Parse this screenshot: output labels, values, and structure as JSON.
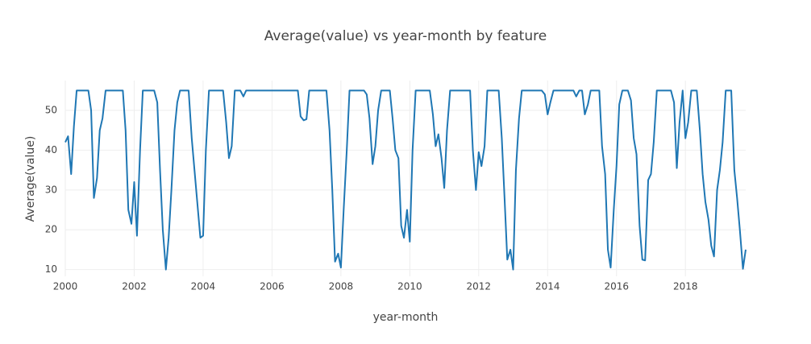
{
  "chart_data": {
    "type": "line",
    "title": "Average(value) vs year-month by feature",
    "x_label": "year-month",
    "y_label": "Average(value)",
    "color": "#1f77b4",
    "grid": true,
    "xlim": [
      2000,
      2019.75
    ],
    "ylim": [
      8.3,
      57.5
    ],
    "xticks": [
      2000,
      2002,
      2004,
      2006,
      2008,
      2010,
      2012,
      2014,
      2016,
      2018
    ],
    "yticks": [
      10,
      20,
      30,
      40,
      50
    ],
    "x": [
      2000,
      2000.08,
      2000.17,
      2000.25,
      2000.33,
      2000.42,
      2000.5,
      2000.58,
      2000.67,
      2000.75,
      2000.83,
      2000.92,
      2001,
      2001.08,
      2001.17,
      2001.25,
      2001.33,
      2001.42,
      2001.5,
      2001.58,
      2001.67,
      2001.75,
      2001.83,
      2001.92,
      2002,
      2002.08,
      2002.17,
      2002.25,
      2002.33,
      2002.42,
      2002.5,
      2002.58,
      2002.67,
      2002.75,
      2002.83,
      2002.92,
      2003,
      2003.08,
      2003.17,
      2003.25,
      2003.33,
      2003.42,
      2003.5,
      2003.58,
      2003.67,
      2003.75,
      2003.83,
      2003.92,
      2004,
      2004.08,
      2004.17,
      2004.25,
      2004.33,
      2004.42,
      2004.5,
      2004.58,
      2004.67,
      2004.75,
      2004.83,
      2004.92,
      2005,
      2005.08,
      2005.17,
      2005.25,
      2005.33,
      2005.42,
      2005.5,
      2005.58,
      2005.67,
      2005.75,
      2005.83,
      2005.92,
      2006,
      2006.08,
      2006.17,
      2006.25,
      2006.33,
      2006.42,
      2006.5,
      2006.58,
      2006.67,
      2006.75,
      2006.83,
      2006.92,
      2007,
      2007.08,
      2007.17,
      2007.25,
      2007.33,
      2007.42,
      2007.5,
      2007.58,
      2007.67,
      2007.75,
      2007.83,
      2007.92,
      2008,
      2008.08,
      2008.17,
      2008.25,
      2008.33,
      2008.42,
      2008.5,
      2008.58,
      2008.67,
      2008.75,
      2008.83,
      2008.92,
      2009,
      2009.08,
      2009.17,
      2009.25,
      2009.33,
      2009.42,
      2009.5,
      2009.58,
      2009.67,
      2009.75,
      2009.83,
      2009.92,
      2010,
      2010.08,
      2010.17,
      2010.25,
      2010.33,
      2010.42,
      2010.5,
      2010.58,
      2010.67,
      2010.75,
      2010.83,
      2010.92,
      2011,
      2011.08,
      2011.17,
      2011.25,
      2011.33,
      2011.42,
      2011.5,
      2011.58,
      2011.67,
      2011.75,
      2011.83,
      2011.92,
      2012,
      2012.08,
      2012.17,
      2012.25,
      2012.33,
      2012.42,
      2012.5,
      2012.58,
      2012.67,
      2012.75,
      2012.83,
      2012.92,
      2013,
      2013.08,
      2013.17,
      2013.25,
      2013.33,
      2013.42,
      2013.5,
      2013.58,
      2013.67,
      2013.75,
      2013.83,
      2013.92,
      2014,
      2014.08,
      2014.17,
      2014.25,
      2014.33,
      2014.42,
      2014.5,
      2014.58,
      2014.67,
      2014.75,
      2014.83,
      2014.92,
      2015,
      2015.08,
      2015.17,
      2015.25,
      2015.33,
      2015.42,
      2015.5,
      2015.58,
      2015.67,
      2015.75,
      2015.83,
      2015.92,
      2016,
      2016.08,
      2016.17,
      2016.25,
      2016.33,
      2016.42,
      2016.5,
      2016.58,
      2016.67,
      2016.75,
      2016.83,
      2016.92,
      2017,
      2017.08,
      2017.17,
      2017.25,
      2017.33,
      2017.42,
      2017.5,
      2017.58,
      2017.67,
      2017.75,
      2017.83,
      2017.92,
      2018,
      2018.08,
      2018.17,
      2018.25,
      2018.33,
      2018.42,
      2018.5,
      2018.58,
      2018.67,
      2018.75,
      2018.83,
      2018.92,
      2019,
      2019.08,
      2019.17,
      2019.25,
      2019.33,
      2019.42,
      2019.5,
      2019.58,
      2019.67,
      2019.75
    ],
    "values": [
      42,
      43.5,
      34,
      46,
      55,
      55,
      55,
      55,
      55,
      50,
      28,
      33,
      45,
      48,
      55,
      55,
      55,
      55,
      55,
      55,
      55,
      45,
      25,
      21.5,
      32,
      18.5,
      40,
      55,
      55,
      55,
      55,
      55,
      52,
      35,
      20,
      10,
      18,
      30,
      45,
      52,
      55,
      55,
      55,
      55,
      43,
      35,
      27,
      18,
      18.5,
      40,
      55,
      55,
      55,
      55,
      55,
      55,
      47,
      38,
      41,
      55,
      55,
      55,
      53.5,
      55,
      55,
      55,
      55,
      55,
      55,
      55,
      55,
      55,
      55,
      55,
      55,
      55,
      55,
      55,
      55,
      55,
      55,
      55,
      48.5,
      47.5,
      47.8,
      55,
      55,
      55,
      55,
      55,
      55,
      55,
      45,
      30,
      12,
      14,
      10.5,
      25,
      40,
      55,
      55,
      55,
      55,
      55,
      55,
      54,
      48,
      36.5,
      41,
      50,
      55,
      55,
      55,
      55,
      48,
      40,
      38,
      21,
      18,
      25,
      17,
      40,
      55,
      55,
      55,
      55,
      55,
      55,
      49,
      41,
      44,
      38,
      30.5,
      45,
      55,
      55,
      55,
      55,
      55,
      55,
      55,
      55,
      40,
      30,
      39.5,
      36,
      41,
      55,
      55,
      55,
      55,
      55,
      43,
      28,
      12.5,
      15,
      10,
      35,
      48,
      55,
      55,
      55,
      55,
      55,
      55,
      55,
      55,
      54,
      49,
      52,
      55,
      55,
      55,
      55,
      55,
      55,
      55,
      55,
      53.5,
      55,
      55,
      49,
      51.5,
      55,
      55,
      55,
      55,
      41,
      34,
      15,
      10.5,
      25,
      36,
      51.5,
      55,
      55,
      55,
      52.5,
      43,
      39,
      21,
      12.5,
      12.3,
      32.5,
      34,
      42,
      55,
      55,
      55,
      55,
      55,
      55,
      52,
      35.5,
      47,
      55,
      43,
      47,
      55,
      55,
      55,
      45,
      34,
      27,
      22.5,
      16,
      13.3,
      30,
      35,
      42,
      55,
      55,
      55,
      35,
      28,
      20,
      10.2,
      15
    ]
  }
}
